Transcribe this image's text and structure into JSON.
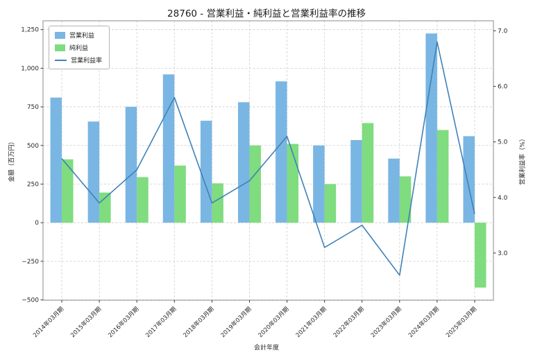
{
  "title": "28760 - 営業利益・純利益と営業利益率の推移",
  "chart_data": {
    "type": "bar",
    "combo": "grouped bars (left axis) + line (right axis)",
    "title": "28760 - 営業利益・純利益と営業利益率の推移",
    "xlabel": "会計年度",
    "ylabel_left": "金額（百万円）",
    "ylabel_right": "営業利益率（%）",
    "categories": [
      "2014年03月期",
      "2015年03月期",
      "2016年03月期",
      "2017年03月期",
      "2018年03月期",
      "2019年03月期",
      "2020年03月期",
      "2021年03月期",
      "2022年03月期",
      "2023年03月期",
      "2024年03月期",
      "2025年03月期"
    ],
    "series": [
      {
        "name": "営業利益",
        "type": "bar",
        "axis": "left",
        "color": "#7ab6e3",
        "values": [
          810,
          655,
          750,
          960,
          660,
          780,
          915,
          500,
          535,
          415,
          1225,
          560
        ]
      },
      {
        "name": "純利益",
        "type": "bar",
        "axis": "left",
        "color": "#7fdc7f",
        "values": [
          410,
          195,
          295,
          370,
          255,
          500,
          510,
          250,
          645,
          300,
          600,
          -420
        ]
      },
      {
        "name": "営業利益率",
        "type": "line",
        "axis": "right",
        "color": "#3f81b8",
        "values": [
          4.7,
          3.9,
          4.5,
          5.8,
          3.9,
          4.3,
          5.1,
          3.1,
          3.5,
          2.6,
          6.8,
          3.7
        ]
      }
    ],
    "ylim_left": [
      -502,
      1307
    ],
    "ylim_right": [
      2.15,
      7.18
    ],
    "yticks_left": [
      -500,
      -250,
      0,
      250,
      500,
      750,
      1000,
      1250
    ],
    "yticks_right": [
      3.0,
      4.0,
      5.0,
      6.0,
      7.0
    ],
    "grid": true,
    "legend_position": "upper-left"
  }
}
